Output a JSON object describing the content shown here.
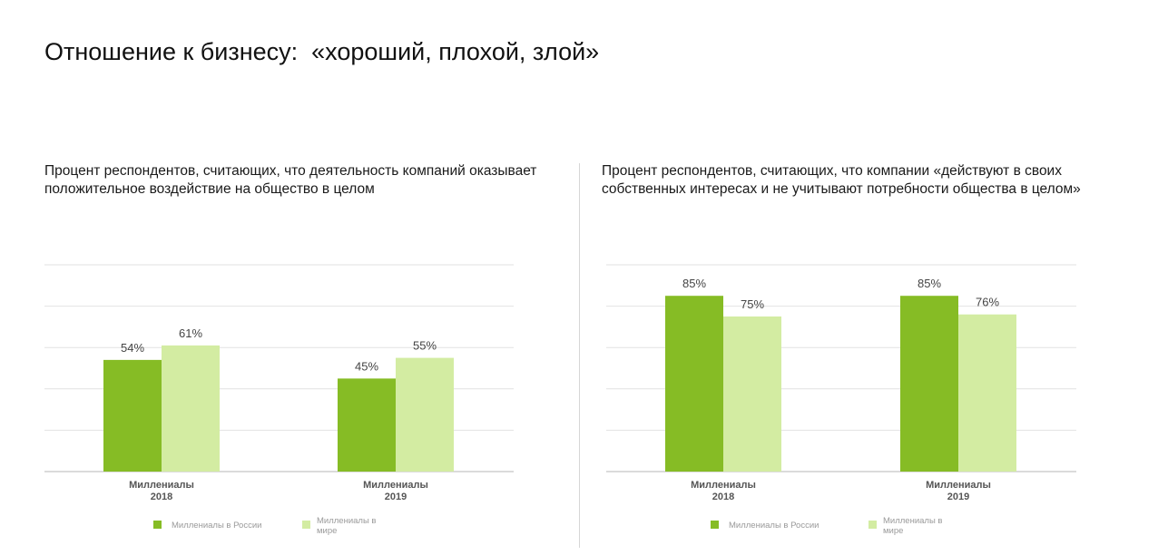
{
  "page": {
    "title": "Отношение к бизнесу:  «хороший, плохой, злой»"
  },
  "colors": {
    "russia": "#86bc25",
    "world": "#d3eca2",
    "grid": "#e2e2e2",
    "axis": "#cfcfcf"
  },
  "legend": {
    "russia": "Миллениалы в России",
    "world_line1": "Миллениалы в",
    "world_line2": "мире"
  },
  "chart_data": [
    {
      "type": "bar",
      "title": "Процент респондентов, считающих, что деятельность компаний оказывает положительное воздействие на общество в целом",
      "categories": [
        {
          "line1": "Миллениалы",
          "line2": "2018"
        },
        {
          "line1": "Миллениалы",
          "line2": "2019"
        }
      ],
      "series": [
        {
          "name": "Миллениалы в России",
          "values": [
            54,
            45
          ]
        },
        {
          "name": "Миллениалы в мире",
          "values": [
            61,
            55
          ]
        }
      ],
      "ylim": [
        0,
        100
      ],
      "grid": true,
      "legend_position": "bottom",
      "value_suffix": "%"
    },
    {
      "type": "bar",
      "title": "Процент респондентов, считающих, что компании «действуют в своих собственных интересах и не учитывают потребности общества в целом»",
      "categories": [
        {
          "line1": "Миллениалы",
          "line2": "2018"
        },
        {
          "line1": "Миллениалы",
          "line2": "2019"
        }
      ],
      "series": [
        {
          "name": "Миллениалы в России",
          "values": [
            85,
            85
          ]
        },
        {
          "name": "Миллениалы в мире",
          "values": [
            75,
            76
          ]
        }
      ],
      "ylim": [
        0,
        100
      ],
      "grid": true,
      "legend_position": "bottom",
      "value_suffix": "%"
    }
  ]
}
